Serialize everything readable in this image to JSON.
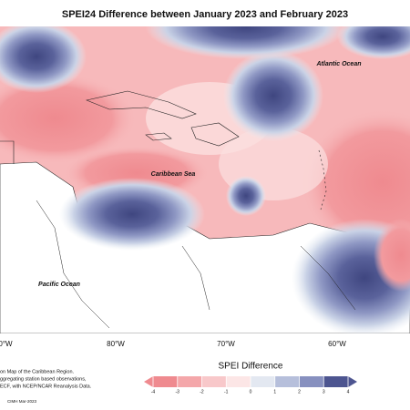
{
  "title": "SPEI24 Difference between January 2023 and February 2023",
  "map_labels": [
    "Atlantic Ocean",
    "Caribbean Sea",
    "Pacific Ocean"
  ],
  "longitude_labels": [
    "0°W",
    "80°W",
    "70°W",
    "60°W"
  ],
  "credits": [
    "on Map of the Caribbean Region.",
    "ggregating station based observations,",
    "ECF, with NCEP/NCAR Reanalysis Data."
  ],
  "footer": "CIMH Mar-2023",
  "legend": {
    "title": "SPEI Difference",
    "ticks": [
      -4,
      -3,
      -2,
      -1,
      0,
      1,
      2,
      3,
      4
    ],
    "colors": [
      "#ef8a8f",
      "#f4a7aa",
      "#f8c8ca",
      "#fce6e6",
      "#e3e8f1",
      "#b6bfdb",
      "#8790bf",
      "#4d5590"
    ]
  }
}
